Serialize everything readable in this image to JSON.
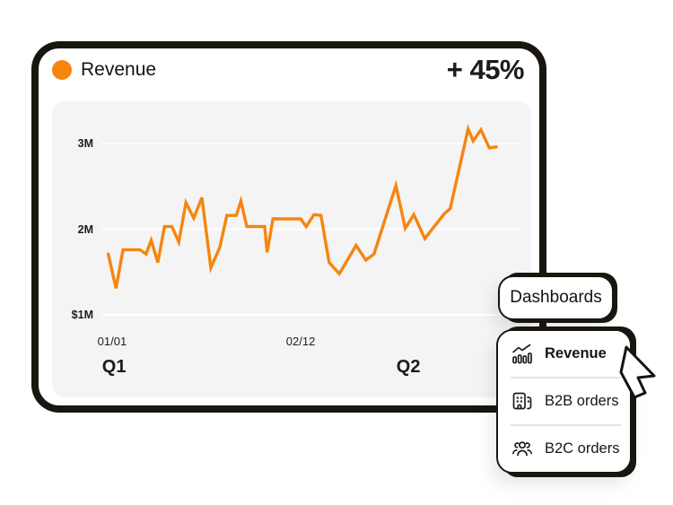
{
  "colors": {
    "accent": "#F6850F",
    "ink": "#19150f",
    "panel_bg": "#f4f4f4",
    "grid": "#ffffff",
    "text": "#131313"
  },
  "header": {
    "title": "Revenue",
    "delta": "+ 45%"
  },
  "chart_data": {
    "type": "line",
    "title": "Revenue",
    "unit": "USD (millions)",
    "grid": "horizontal gridlines at 1M/2M/3M, light panel background",
    "legend_position": "none",
    "ylim": [
      1,
      3.35
    ],
    "y_ticks": [
      {
        "label": "3M",
        "value": 3
      },
      {
        "label": "2M",
        "value": 2
      },
      {
        "label": "$1M",
        "value": 1
      }
    ],
    "x_ticks": [
      {
        "label": "01/01",
        "frac": 1.6
      },
      {
        "label": "02/12",
        "frac": 49.9
      }
    ],
    "period_labels": [
      {
        "label": "Q1",
        "frac": 2.1
      },
      {
        "label": "Q2",
        "frac": 77.5
      }
    ],
    "series": [
      {
        "name": "Revenue",
        "color": "#F6850F",
        "points_format": "[percent-along-x-axis, value-in-millions]",
        "points": [
          [
            0.6,
            1.71
          ],
          [
            2.6,
            1.31
          ],
          [
            4.4,
            1.76
          ],
          [
            8.7,
            1.76
          ],
          [
            10.3,
            1.71
          ],
          [
            11.6,
            1.87
          ],
          [
            13.3,
            1.61
          ],
          [
            15.0,
            2.03
          ],
          [
            16.9,
            2.03
          ],
          [
            18.7,
            1.85
          ],
          [
            20.5,
            2.31
          ],
          [
            22.5,
            2.13
          ],
          [
            24.6,
            2.37
          ],
          [
            26.9,
            1.55
          ],
          [
            29.2,
            1.79
          ],
          [
            31.0,
            2.16
          ],
          [
            33.4,
            2.16
          ],
          [
            34.6,
            2.33
          ],
          [
            36.1,
            2.03
          ],
          [
            40.7,
            2.03
          ],
          [
            41.3,
            1.73
          ],
          [
            42.8,
            2.12
          ],
          [
            49.9,
            2.12
          ],
          [
            51.3,
            2.03
          ],
          [
            53.3,
            2.17
          ],
          [
            55.1,
            2.16
          ],
          [
            57.2,
            1.61
          ],
          [
            59.8,
            1.48
          ],
          [
            64.1,
            1.81
          ],
          [
            66.6,
            1.64
          ],
          [
            68.7,
            1.71
          ],
          [
            74.3,
            2.51
          ],
          [
            76.7,
            2.01
          ],
          [
            78.9,
            2.17
          ],
          [
            81.7,
            1.89
          ],
          [
            86.7,
            2.18
          ],
          [
            88.2,
            2.24
          ],
          [
            92.8,
            3.17
          ],
          [
            94.1,
            3.03
          ],
          [
            96.1,
            3.16
          ],
          [
            98.2,
            2.95
          ],
          [
            100,
            2.96
          ]
        ]
      }
    ]
  },
  "overlay": {
    "dashboards_button": "Dashboards",
    "menu": {
      "items": [
        {
          "label": "Revenue",
          "icon": "bar-chart-trend-icon",
          "active": true
        },
        {
          "label": "B2B orders",
          "icon": "building-icon",
          "active": false
        },
        {
          "label": "B2C orders",
          "icon": "people-icon",
          "active": false
        }
      ]
    }
  }
}
